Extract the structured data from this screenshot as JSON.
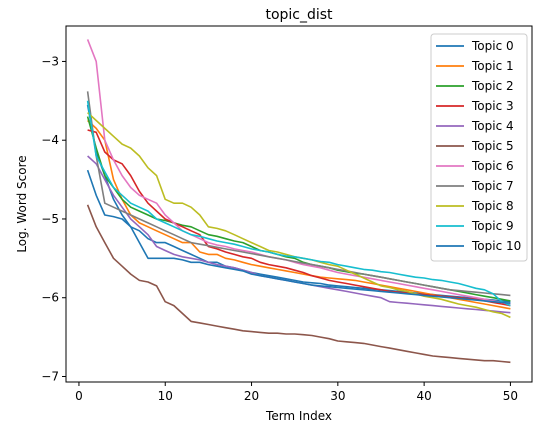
{
  "chart_data": {
    "type": "line",
    "title": "topic_dist",
    "xlabel": "Term Index",
    "ylabel": "Log. Word Score",
    "xlim": [
      -1.5,
      52.5
    ],
    "ylim": [
      -7.07,
      -2.55
    ],
    "xticks": [
      0,
      10,
      20,
      30,
      40,
      50
    ],
    "yticks": [
      -3,
      -4,
      -5,
      -6,
      -7
    ],
    "ytick_labels": [
      "−3",
      "−4",
      "−5",
      "−6",
      "−7"
    ],
    "grid": false,
    "legend_position": "top-right",
    "x": [
      1,
      2,
      3,
      4,
      5,
      6,
      7,
      8,
      9,
      10,
      11,
      12,
      13,
      14,
      15,
      16,
      17,
      18,
      19,
      20,
      21,
      22,
      23,
      24,
      25,
      26,
      27,
      28,
      29,
      30,
      31,
      32,
      33,
      34,
      35,
      36,
      37,
      38,
      39,
      40,
      41,
      42,
      43,
      44,
      45,
      46,
      47,
      48,
      49,
      50
    ],
    "series": [
      {
        "name": "Topic 0",
        "color": "#1f77b4",
        "values": [
          -3.55,
          -4.15,
          -4.45,
          -4.75,
          -4.95,
          -5.1,
          -5.15,
          -5.25,
          -5.3,
          -5.3,
          -5.35,
          -5.4,
          -5.45,
          -5.5,
          -5.55,
          -5.55,
          -5.6,
          -5.62,
          -5.65,
          -5.68,
          -5.7,
          -5.72,
          -5.74,
          -5.76,
          -5.78,
          -5.8,
          -5.81,
          -5.82,
          -5.84,
          -5.85,
          -5.86,
          -5.87,
          -5.88,
          -5.89,
          -5.9,
          -5.91,
          -5.92,
          -5.93,
          -5.94,
          -5.95,
          -5.96,
          -5.97,
          -5.98,
          -5.99,
          -6.0,
          -6.01,
          -6.02,
          -6.03,
          -6.04,
          -6.05
        ]
      },
      {
        "name": "Topic 1",
        "color": "#ff7f0e",
        "values": [
          -3.75,
          -3.85,
          -4.0,
          -4.5,
          -4.75,
          -4.95,
          -5.05,
          -5.1,
          -5.15,
          -5.2,
          -5.25,
          -5.3,
          -5.3,
          -5.42,
          -5.45,
          -5.45,
          -5.5,
          -5.52,
          -5.55,
          -5.58,
          -5.6,
          -5.62,
          -5.64,
          -5.66,
          -5.68,
          -5.7,
          -5.72,
          -5.74,
          -5.75,
          -5.76,
          -5.77,
          -5.78,
          -5.8,
          -5.82,
          -5.84,
          -5.86,
          -5.88,
          -5.9,
          -5.92,
          -5.94,
          -5.96,
          -5.98,
          -6.0,
          -6.02,
          -6.04,
          -6.06,
          -6.08,
          -6.1,
          -6.12,
          -6.14
        ]
      },
      {
        "name": "Topic 2",
        "color": "#2ca02c",
        "values": [
          -3.7,
          -4.1,
          -4.45,
          -4.6,
          -4.75,
          -4.85,
          -4.9,
          -4.95,
          -5.0,
          -5.02,
          -5.05,
          -5.08,
          -5.1,
          -5.15,
          -5.2,
          -5.22,
          -5.25,
          -5.28,
          -5.3,
          -5.35,
          -5.4,
          -5.42,
          -5.45,
          -5.48,
          -5.5,
          -5.55,
          -5.58,
          -5.6,
          -5.62,
          -5.65,
          -5.67,
          -5.69,
          -5.7,
          -5.72,
          -5.74,
          -5.76,
          -5.78,
          -5.8,
          -5.82,
          -5.84,
          -5.86,
          -5.88,
          -5.9,
          -5.92,
          -5.94,
          -5.96,
          -5.98,
          -6.0,
          -6.02,
          -6.04
        ]
      },
      {
        "name": "Topic 3",
        "color": "#d62728",
        "values": [
          -3.87,
          -3.9,
          -4.15,
          -4.25,
          -4.3,
          -4.45,
          -4.65,
          -4.8,
          -4.9,
          -5.0,
          -5.05,
          -5.1,
          -5.15,
          -5.2,
          -5.35,
          -5.38,
          -5.42,
          -5.45,
          -5.48,
          -5.5,
          -5.55,
          -5.58,
          -5.6,
          -5.62,
          -5.65,
          -5.68,
          -5.72,
          -5.75,
          -5.78,
          -5.8,
          -5.82,
          -5.84,
          -5.86,
          -5.88,
          -5.9,
          -5.92,
          -5.93,
          -5.94,
          -5.95,
          -5.96,
          -5.97,
          -5.98,
          -5.99,
          -6.0,
          -6.01,
          -6.02,
          -6.04,
          -6.06,
          -6.08,
          -6.1
        ]
      },
      {
        "name": "Topic 4",
        "color": "#9467bd",
        "values": [
          -4.2,
          -4.3,
          -4.5,
          -4.7,
          -4.85,
          -5.0,
          -5.1,
          -5.2,
          -5.35,
          -5.4,
          -5.45,
          -5.48,
          -5.5,
          -5.52,
          -5.55,
          -5.58,
          -5.6,
          -5.62,
          -5.65,
          -5.68,
          -5.72,
          -5.74,
          -5.76,
          -5.78,
          -5.8,
          -5.82,
          -5.84,
          -5.86,
          -5.88,
          -5.9,
          -5.92,
          -5.94,
          -5.96,
          -5.98,
          -6.0,
          -6.05,
          -6.06,
          -6.07,
          -6.08,
          -6.09,
          -6.1,
          -6.11,
          -6.12,
          -6.13,
          -6.14,
          -6.15,
          -6.16,
          -6.17,
          -6.18,
          -6.19
        ]
      },
      {
        "name": "Topic 5",
        "color": "#8c564b",
        "values": [
          -4.82,
          -5.1,
          -5.3,
          -5.5,
          -5.6,
          -5.7,
          -5.78,
          -5.8,
          -5.85,
          -6.05,
          -6.1,
          -6.2,
          -6.3,
          -6.32,
          -6.34,
          -6.36,
          -6.38,
          -6.4,
          -6.42,
          -6.43,
          -6.44,
          -6.45,
          -6.45,
          -6.46,
          -6.46,
          -6.47,
          -6.48,
          -6.5,
          -6.52,
          -6.55,
          -6.56,
          -6.57,
          -6.58,
          -6.6,
          -6.62,
          -6.64,
          -6.66,
          -6.68,
          -6.7,
          -6.72,
          -6.74,
          -6.75,
          -6.76,
          -6.77,
          -6.78,
          -6.79,
          -6.8,
          -6.8,
          -6.81,
          -6.82
        ]
      },
      {
        "name": "Topic 6",
        "color": "#e377c2",
        "values": [
          -2.72,
          -3.0,
          -4.0,
          -4.25,
          -4.45,
          -4.6,
          -4.7,
          -4.75,
          -4.8,
          -4.95,
          -5.05,
          -5.15,
          -5.2,
          -5.25,
          -5.3,
          -5.33,
          -5.35,
          -5.38,
          -5.4,
          -5.42,
          -5.45,
          -5.48,
          -5.5,
          -5.52,
          -5.55,
          -5.58,
          -5.6,
          -5.62,
          -5.65,
          -5.68,
          -5.7,
          -5.72,
          -5.74,
          -5.76,
          -5.78,
          -5.8,
          -5.82,
          -5.84,
          -5.86,
          -5.88,
          -5.9,
          -5.92,
          -5.94,
          -5.96,
          -5.98,
          -6.0,
          -6.02,
          -6.04,
          -6.06,
          -6.08
        ]
      },
      {
        "name": "Topic 7",
        "color": "#7f7f7f",
        "values": [
          -3.38,
          -4.2,
          -4.8,
          -4.85,
          -4.9,
          -4.95,
          -5.0,
          -5.05,
          -5.1,
          -5.15,
          -5.2,
          -5.25,
          -5.3,
          -5.32,
          -5.34,
          -5.36,
          -5.38,
          -5.4,
          -5.42,
          -5.44,
          -5.46,
          -5.48,
          -5.5,
          -5.52,
          -5.54,
          -5.56,
          -5.58,
          -5.6,
          -5.62,
          -5.64,
          -5.66,
          -5.68,
          -5.7,
          -5.72,
          -5.74,
          -5.76,
          -5.78,
          -5.8,
          -5.82,
          -5.84,
          -5.86,
          -5.88,
          -5.9,
          -5.91,
          -5.92,
          -5.93,
          -5.94,
          -5.95,
          -5.96,
          -5.97
        ]
      },
      {
        "name": "Topic 8",
        "color": "#bcbd22",
        "values": [
          -3.65,
          -3.75,
          -3.85,
          -3.95,
          -4.05,
          -4.1,
          -4.2,
          -4.35,
          -4.45,
          -4.75,
          -4.8,
          -4.8,
          -4.85,
          -4.95,
          -5.1,
          -5.12,
          -5.15,
          -5.2,
          -5.25,
          -5.3,
          -5.35,
          -5.4,
          -5.42,
          -5.45,
          -5.48,
          -5.5,
          -5.52,
          -5.55,
          -5.58,
          -5.6,
          -5.65,
          -5.7,
          -5.75,
          -5.8,
          -5.85,
          -5.87,
          -5.9,
          -5.92,
          -5.95,
          -5.98,
          -6.0,
          -6.02,
          -6.05,
          -6.08,
          -6.1,
          -6.12,
          -6.15,
          -6.18,
          -6.2,
          -6.25
        ]
      },
      {
        "name": "Topic 9",
        "color": "#17becf",
        "values": [
          -3.5,
          -4.2,
          -4.4,
          -4.6,
          -4.7,
          -4.8,
          -4.85,
          -4.9,
          -5.0,
          -5.05,
          -5.1,
          -5.15,
          -5.2,
          -5.22,
          -5.25,
          -5.28,
          -5.3,
          -5.32,
          -5.35,
          -5.38,
          -5.4,
          -5.42,
          -5.45,
          -5.47,
          -5.48,
          -5.5,
          -5.52,
          -5.54,
          -5.55,
          -5.58,
          -5.6,
          -5.62,
          -5.64,
          -5.65,
          -5.67,
          -5.68,
          -5.7,
          -5.72,
          -5.74,
          -5.75,
          -5.77,
          -5.78,
          -5.8,
          -5.82,
          -5.85,
          -5.88,
          -5.9,
          -5.95,
          -6.05,
          -6.1
        ]
      },
      {
        "name": "Topic 10",
        "color": "#1f77b4",
        "values": [
          -4.38,
          -4.7,
          -4.95,
          -4.97,
          -5.0,
          -5.1,
          -5.3,
          -5.5,
          -5.5,
          -5.5,
          -5.5,
          -5.52,
          -5.55,
          -5.55,
          -5.58,
          -5.6,
          -5.62,
          -5.64,
          -5.66,
          -5.7,
          -5.72,
          -5.74,
          -5.76,
          -5.78,
          -5.8,
          -5.82,
          -5.84,
          -5.85,
          -5.86,
          -5.87,
          -5.88,
          -5.89,
          -5.9,
          -5.91,
          -5.92,
          -5.93,
          -5.94,
          -5.95,
          -5.96,
          -5.97,
          -5.98,
          -5.99,
          -6.0,
          -6.01,
          -6.02,
          -6.03,
          -6.04,
          -6.05,
          -6.06,
          -6.07
        ]
      }
    ]
  }
}
